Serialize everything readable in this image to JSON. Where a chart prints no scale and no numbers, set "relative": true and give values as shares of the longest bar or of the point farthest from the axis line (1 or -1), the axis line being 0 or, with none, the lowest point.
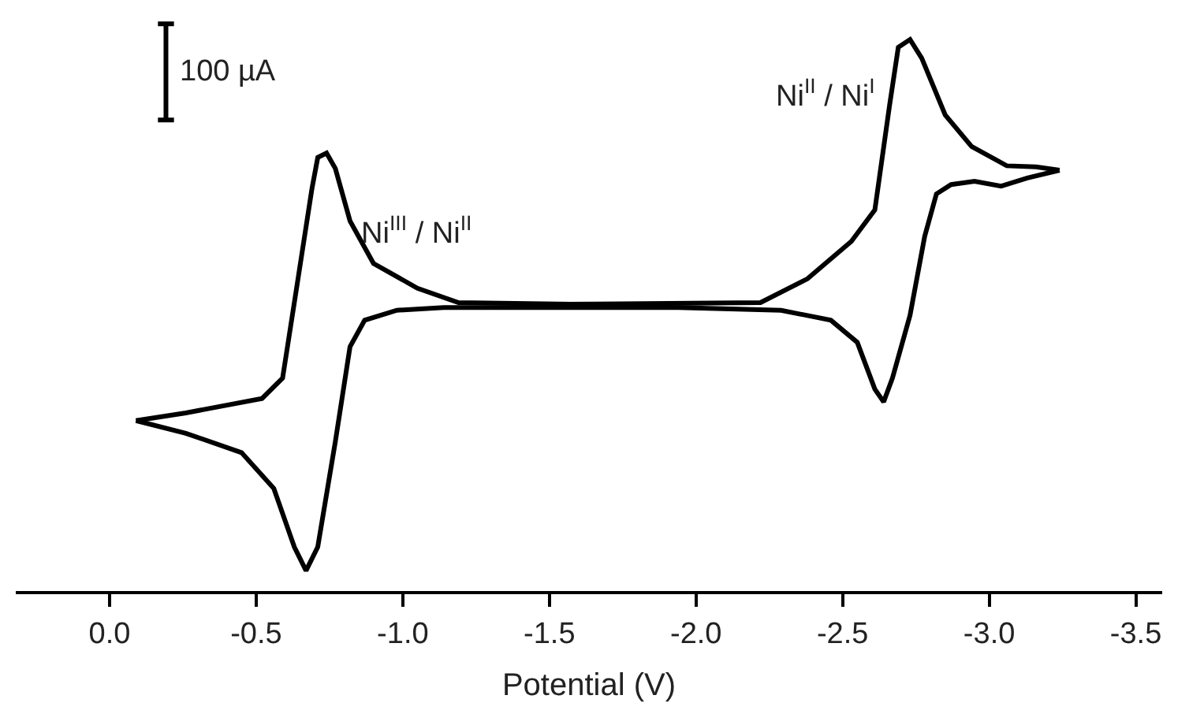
{
  "chart_data": {
    "type": "line",
    "relative": true,
    "xlabel": "Potential (V)",
    "x": [
      -0.09,
      -0.26,
      -0.52,
      -0.59,
      -0.64,
      -0.69,
      -0.71,
      -0.74,
      -0.77,
      -0.82,
      -0.9,
      -1.05,
      -1.19,
      -1.57,
      -2.22,
      -2.38,
      -2.53,
      -2.61,
      -2.66,
      -2.69,
      -2.73,
      -2.77,
      -2.85,
      -2.94,
      -3.06,
      -3.16,
      -3.24
    ],
    "series": [
      {
        "color": "#000000",
        "values": [
          0.309,
          0.323,
          0.349,
          0.386,
          0.557,
          0.729,
          0.786,
          0.794,
          0.766,
          0.671,
          0.594,
          0.549,
          0.523,
          0.52,
          0.523,
          0.566,
          0.634,
          0.691,
          0.88,
          0.986,
          1.0,
          0.966,
          0.863,
          0.806,
          0.771,
          0.769,
          0.763
        ]
      },
      {
        "color": "#000000",
        "x": [
          -3.24,
          -3.13,
          -3.04,
          -2.95,
          -2.87,
          -2.82,
          -2.78,
          -2.73,
          -2.67,
          -2.64,
          -2.61,
          -2.55,
          -2.46,
          -2.29,
          -1.94,
          -1.57,
          -1.14,
          -0.98,
          -0.87,
          -0.82,
          -0.77,
          -0.71,
          -0.67,
          -0.63,
          -0.56,
          -0.45,
          -0.26,
          -0.09
        ],
        "values": [
          0.763,
          0.749,
          0.734,
          0.743,
          0.737,
          0.72,
          0.643,
          0.5,
          0.386,
          0.343,
          0.366,
          0.451,
          0.491,
          0.509,
          0.514,
          0.514,
          0.514,
          0.509,
          0.491,
          0.443,
          0.271,
          0.08,
          0.037,
          0.08,
          0.186,
          0.251,
          0.286,
          0.309
        ]
      }
    ],
    "xlim": [
      0.32,
      -3.59
    ],
    "xticks": [
      {
        "value": 0,
        "label": "0.0"
      },
      -0.5,
      {
        "value": -1,
        "label": "-1.0"
      },
      -1.5,
      {
        "value": -2,
        "label": "-2.0"
      },
      -2.5,
      {
        "value": -3,
        "label": "-3.0"
      },
      -3.5
    ],
    "annotations": [
      "100 µA",
      {
        "text": "Ni$^{III}$ / Ni$^{II}$",
        "x": -0.74,
        "y": 0.794
      },
      {
        "text": "Ni$^{II}$ / Ni$^{I}$",
        "x": -2.73,
        "y": 1.0
      }
    ],
    "marker": "none",
    "line_style": "solid"
  }
}
